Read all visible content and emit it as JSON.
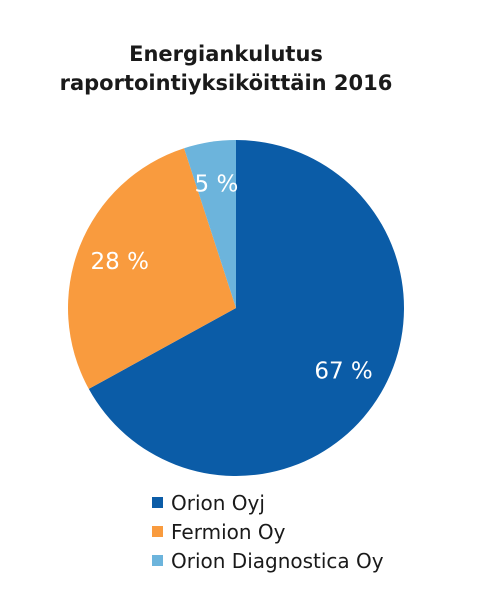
{
  "chart_data": {
    "type": "pie",
    "title_lines": [
      "Energiankulutus",
      "raportointiyksiköittäin 2016"
    ],
    "slices": [
      {
        "name": "Orion Oyj",
        "value": 67,
        "label": "67 %",
        "color": "#0b5ca7"
      },
      {
        "name": "Fermion Oy",
        "value": 28,
        "label": "28 %",
        "color": "#f99b3e"
      },
      {
        "name": "Orion Diagnostica Oy",
        "value": 5,
        "label": "5 %",
        "color": "#6cb4dc"
      }
    ],
    "legend_position": "bottom"
  }
}
